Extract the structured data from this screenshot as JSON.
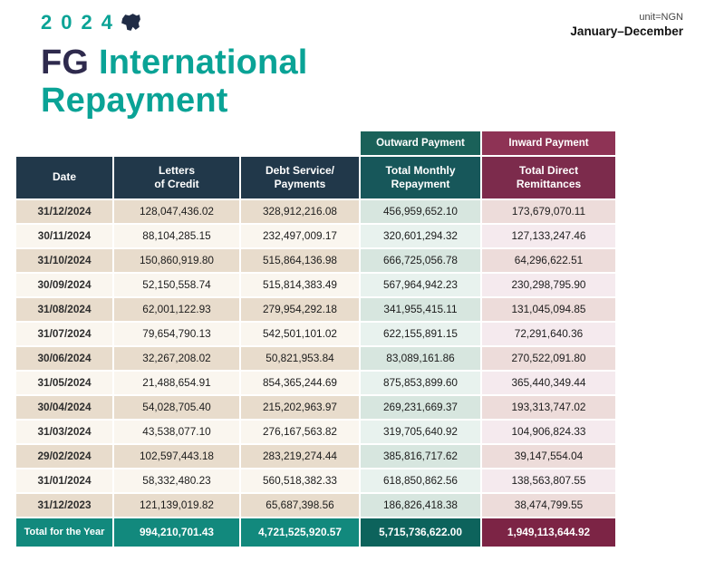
{
  "header": {
    "year": "2024",
    "unit_label": "unit=NGN",
    "period": "January–December",
    "title_prefix": "FG",
    "title_line1": "International",
    "title_line2": "Repayment"
  },
  "chart_data": {
    "type": "table",
    "title": "FG International Repayment",
    "year": "2024",
    "unit_label": "unit=NGN",
    "period": "January–December",
    "group_headers": {
      "outward": "Outward Payment",
      "inward": "Inward Payment"
    },
    "columns": [
      "Date",
      "Letters of Credit",
      "Debt Service/Payments",
      "Total Monthly Repayment",
      "Total Direct Remittances"
    ],
    "column_labels": [
      "Date",
      "Letters\nof Credit",
      "Debt Service/\nPayments",
      "Total Monthly\nRepayment",
      "Total Direct\nRemittances"
    ],
    "rows": [
      [
        "31/12/2024",
        "128,047,436.02",
        "328,912,216.08",
        "456,959,652.10",
        "173,679,070.11"
      ],
      [
        "30/11/2024",
        "88,104,285.15",
        "232,497,009.17",
        "320,601,294.32",
        "127,133,247.46"
      ],
      [
        "31/10/2024",
        "150,860,919.80",
        "515,864,136.98",
        "666,725,056.78",
        "64,296,622.51"
      ],
      [
        "30/09/2024",
        "52,150,558.74",
        "515,814,383.49",
        "567,964,942.23",
        "230,298,795.90"
      ],
      [
        "31/08/2024",
        "62,001,122.93",
        "279,954,292.18",
        "341,955,415.11",
        "131,045,094.85"
      ],
      [
        "31/07/2024",
        "79,654,790.13",
        "542,501,101.02",
        "622,155,891.15",
        "72,291,640.36"
      ],
      [
        "30/06/2024",
        "32,267,208.02",
        "50,821,953.84",
        "83,089,161.86",
        "270,522,091.80"
      ],
      [
        "31/05/2024",
        "21,488,654.91",
        "854,365,244.69",
        "875,853,899.60",
        "365,440,349.44"
      ],
      [
        "30/04/2024",
        "54,028,705.40",
        "215,202,963.97",
        "269,231,669.37",
        "193,313,747.02"
      ],
      [
        "31/03/2024",
        "43,538,077.10",
        "276,167,563.82",
        "319,705,640.92",
        "104,906,824.33"
      ],
      [
        "29/02/2024",
        "102,597,443.18",
        "283,219,274.44",
        "385,816,717.62",
        "39,147,554.04"
      ],
      [
        "31/01/2024",
        "58,332,480.23",
        "560,518,382.33",
        "618,850,862.56",
        "138,563,807.55"
      ],
      [
        "31/12/2023",
        "121,139,019.82",
        "65,687,398.56",
        "186,826,418.38",
        "38,474,799.55"
      ]
    ],
    "total_row": [
      "Total for the Year",
      "994,210,701.43",
      "4,721,525,920.57",
      "5,715,736,622.00",
      "1,949,113,644.92"
    ]
  },
  "colors": {
    "teal": "#0aa396",
    "title_dark": "#2e2a4d",
    "map_navy": "#202c46",
    "navy": "#21384a",
    "teal_dark": "#1a6159",
    "teal_head": "#17575a",
    "maroon": "#8e3355",
    "maroon_dark": "#7c2b4c",
    "total_teal": "#12897d",
    "total_teal_dark": "#0d635c",
    "total_maroon": "#7c2445",
    "row_beige": "#e8dccc",
    "row_cream": "#faf6ef",
    "row_teal_odd": "#d7e6df",
    "row_teal_even": "#e8f2ee",
    "row_pink_odd": "#eddcda",
    "row_pink_even": "#f5eaee",
    "text_dark": "#1c1c1c"
  }
}
